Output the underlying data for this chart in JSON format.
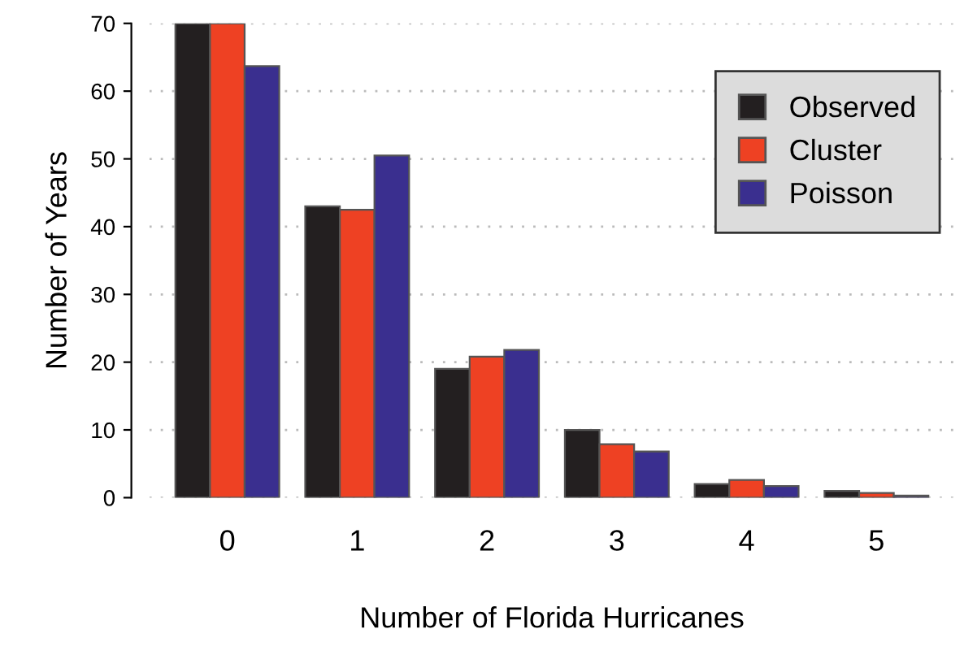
{
  "chart_data": {
    "type": "bar",
    "xlabel": "Number of Florida Hurricanes",
    "ylabel": "Number of Years",
    "categories": [
      "0",
      "1",
      "2",
      "3",
      "4",
      "5"
    ],
    "series": [
      {
        "name": "Observed",
        "color": "#231f20",
        "values": [
          70,
          43,
          19,
          10,
          2,
          1
        ]
      },
      {
        "name": "Cluster",
        "color": "#ee4123",
        "values": [
          70,
          42.5,
          20.8,
          7.9,
          2.6,
          0.7
        ]
      },
      {
        "name": "Poisson",
        "color": "#3a2f8f",
        "values": [
          63.7,
          50.5,
          21.8,
          6.8,
          1.7,
          0.3
        ]
      }
    ],
    "ylim": [
      0,
      70
    ],
    "yticks": [
      0,
      10,
      20,
      30,
      40,
      50,
      60,
      70
    ],
    "grid": "y",
    "legend": "top right"
  }
}
